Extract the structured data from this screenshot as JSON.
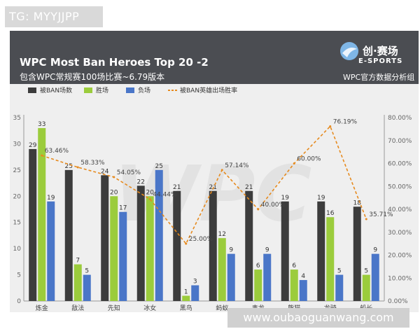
{
  "tag": "TG: MYYJJPP",
  "watermark": "www.oubaoguanwang.com",
  "header": {
    "title": "WPC Most Ban Heroes Top 20 -2",
    "subtitle": "包含WPC常规赛100场比赛~6.79版本",
    "brand_cn": "创·赛场",
    "brand_en": "E-SPORTS",
    "data_group": "WPC官方数据分析组"
  },
  "colors": {
    "header_bg": "#4b4d52",
    "ban": "#3c3c3c",
    "win": "#9bcc3c",
    "loss": "#4a76c8",
    "rate": "#e68a1e"
  },
  "chart_data": {
    "type": "bar",
    "categories": [
      "炼金",
      "敌法",
      "先知",
      "冰女",
      "黑鸟",
      "蚂蚁",
      "毒龙",
      "熊猫",
      "龙骑",
      "船长"
    ],
    "series": [
      {
        "name": "被BAN场数",
        "values": [
          29,
          25,
          24,
          22,
          21,
          21,
          21,
          19,
          19,
          18
        ]
      },
      {
        "name": "胜场",
        "values": [
          33,
          7,
          20,
          20,
          1,
          12,
          6,
          6,
          16,
          5
        ]
      },
      {
        "name": "负场",
        "values": [
          19,
          5,
          17,
          25,
          3,
          9,
          9,
          4,
          5,
          9
        ]
      },
      {
        "name": "被BAN英雄出场胜率",
        "type": "line",
        "axis": "right",
        "values": [
          63.46,
          58.33,
          54.05,
          44.44,
          25.0,
          57.14,
          40.0,
          60.0,
          76.19,
          35.71
        ],
        "labels": [
          "63.46%",
          "58.33%",
          "54.05%",
          "44.44%",
          "25.00%",
          "57.14%",
          "40.00%",
          "60.00%",
          "76.19%",
          "35.71%"
        ]
      }
    ],
    "ylim": [
      0,
      35
    ],
    "y2lim": [
      0,
      80
    ],
    "yticks": [
      "0",
      "5",
      "10",
      "15",
      "20",
      "25",
      "30",
      "35"
    ],
    "y2ticks": [
      "0.00%",
      "10.00%",
      "20.00%",
      "30.00%",
      "40.00%",
      "50.00%",
      "60.00%",
      "70.00%",
      "80.00%"
    ],
    "grid": false,
    "legend": "top"
  }
}
